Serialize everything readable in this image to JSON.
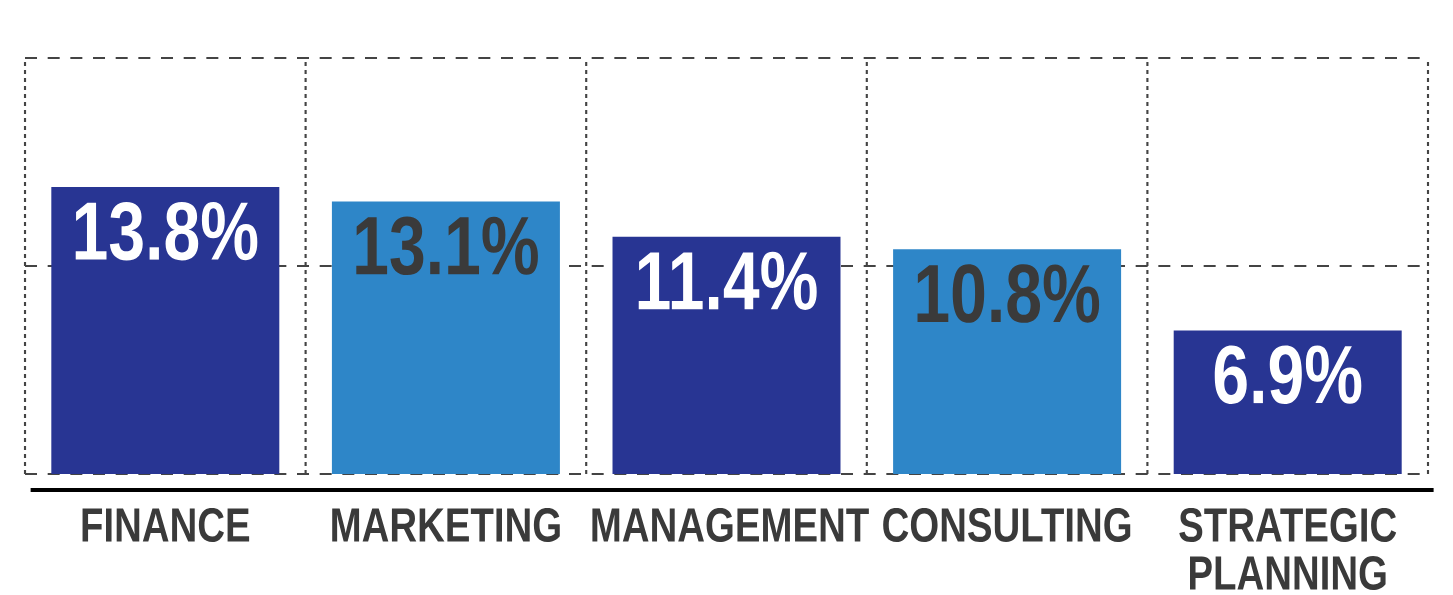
{
  "chart_data": {
    "type": "bar",
    "categories": [
      "FINANCE",
      "MARKETING",
      "MANAGEMENT",
      "CONSULTING",
      "STRATEGIC PLANNING"
    ],
    "values": [
      13.8,
      13.1,
      11.4,
      10.8,
      6.9
    ],
    "value_labels": [
      "13.8%",
      "13.1%",
      "11.4%",
      "10.8%",
      "6.9%"
    ],
    "colors": [
      "#283593",
      "#2e86c8",
      "#283593",
      "#2e86c8",
      "#283593"
    ],
    "ylim": [
      0,
      20
    ],
    "yticks": [
      {
        "value": 0,
        "label": null
      },
      {
        "value": 10,
        "label": null
      },
      {
        "value": 20,
        "label": null
      }
    ],
    "grid": true,
    "tick_labels": "x"
  }
}
